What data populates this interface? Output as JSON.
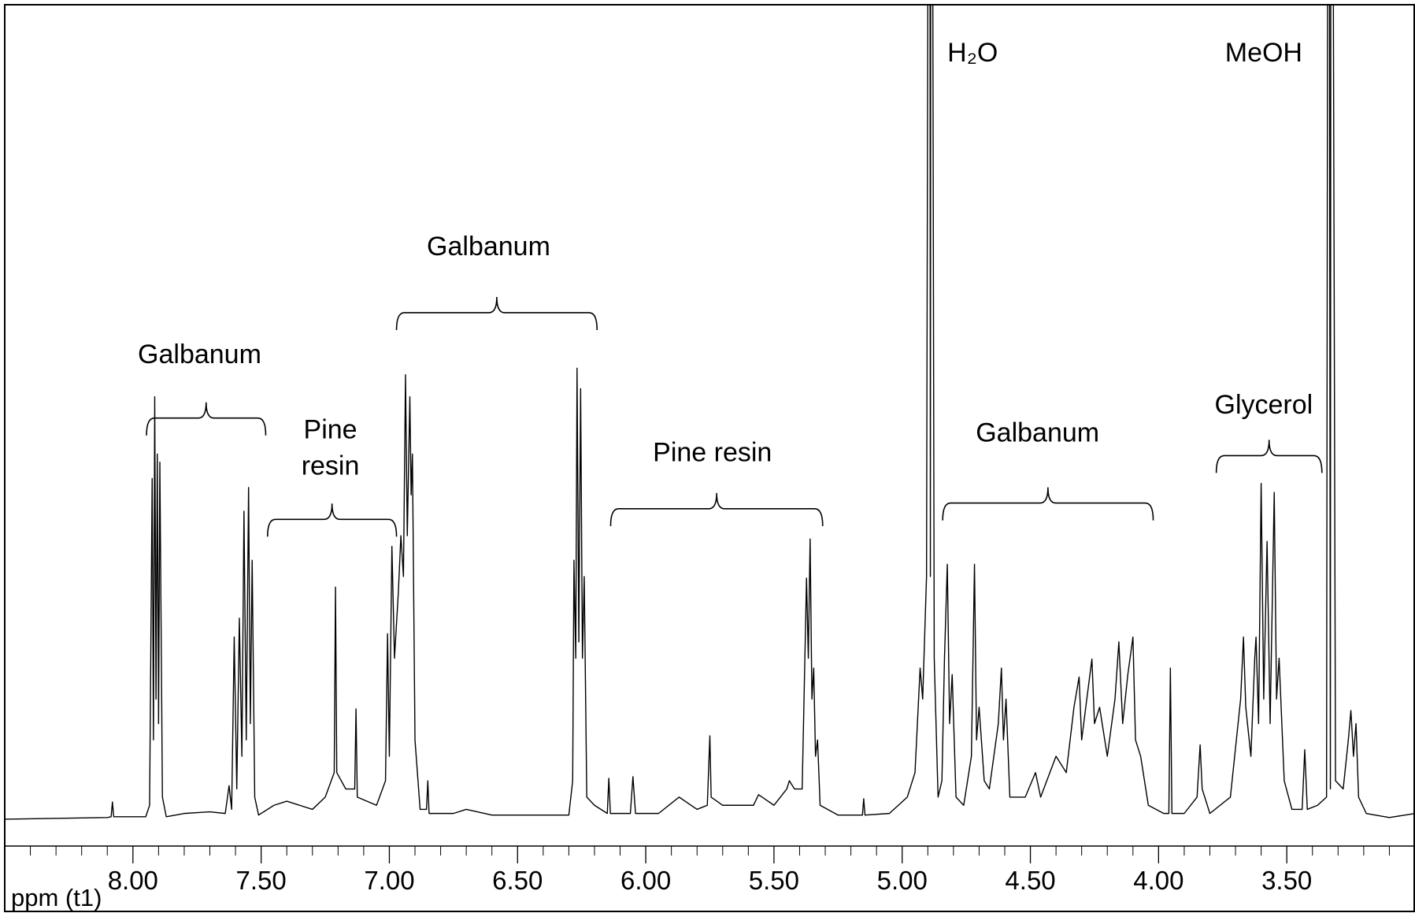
{
  "chart_data": {
    "type": "line",
    "color": "#000000",
    "xlabel": "ppm (t1)",
    "xlim": [
      8.5,
      3.0
    ],
    "ylim": [
      0,
      100
    ],
    "xticks": [
      {
        "value": 8,
        "label": "8.00"
      },
      {
        "value": 7.5,
        "label": "7.50"
      },
      {
        "value": 7,
        "label": "7.00"
      },
      {
        "value": 6.5,
        "label": "6.50"
      },
      {
        "value": 6,
        "label": "6.00"
      },
      {
        "value": 5.5,
        "label": "5.50"
      },
      {
        "value": 5,
        "label": "5.00"
      },
      {
        "value": 4.5,
        "label": "4.50"
      },
      {
        "value": 4,
        "label": "4.00"
      },
      {
        "value": 3.5,
        "label": "3.50"
      }
    ],
    "xminor": [
      8.4,
      8.3,
      8.2,
      8.1,
      7.9,
      7.8,
      7.7,
      7.6,
      7.4,
      7.3,
      7.2,
      7.1,
      6.9,
      6.8,
      6.7,
      6.6,
      6.4,
      6.3,
      6.2,
      6.1,
      5.9,
      5.8,
      5.7,
      5.6,
      5.4,
      5.3,
      5.2,
      5.1,
      4.9,
      4.8,
      4.7,
      4.6,
      4.4,
      4.3,
      4.2,
      4.1,
      3.9,
      3.8,
      3.7,
      3.6,
      3.4,
      3.3,
      3.2,
      3.1
    ],
    "x": [
      8.5,
      8.1,
      8.085,
      8.08,
      8.075,
      7.95,
      7.935,
      7.925,
      7.92,
      7.915,
      7.91,
      7.905,
      7.9,
      7.895,
      7.885,
      7.87,
      7.8,
      7.7,
      7.64,
      7.625,
      7.615,
      7.605,
      7.595,
      7.585,
      7.575,
      7.567,
      7.558,
      7.549,
      7.542,
      7.535,
      7.525,
      7.51,
      7.45,
      7.4,
      7.3,
      7.25,
      7.215,
      7.21,
      7.205,
      7.17,
      7.135,
      7.13,
      7.125,
      7.05,
      7.015,
      7.007,
      7.0,
      6.99,
      6.98,
      6.965,
      6.955,
      6.945,
      6.937,
      6.93,
      6.92,
      6.915,
      6.91,
      6.9,
      6.88,
      6.855,
      6.85,
      6.845,
      6.75,
      6.7,
      6.6,
      6.45,
      6.3,
      6.285,
      6.28,
      6.273,
      6.268,
      6.261,
      6.254,
      6.247,
      6.24,
      6.23,
      6.2,
      6.15,
      6.144,
      6.138,
      6.06,
      6.05,
      6.04,
      5.95,
      5.87,
      5.8,
      5.76,
      5.75,
      5.745,
      5.7,
      5.58,
      5.56,
      5.5,
      5.45,
      5.44,
      5.42,
      5.39,
      5.373,
      5.366,
      5.359,
      5.352,
      5.345,
      5.338,
      5.33,
      5.32,
      5.25,
      5.155,
      5.15,
      5.145,
      5.05,
      4.98,
      4.95,
      4.93,
      4.92,
      4.905,
      4.893,
      4.89,
      4.887,
      4.875,
      4.86,
      4.845,
      4.835,
      4.824,
      4.815,
      4.805,
      4.79,
      4.76,
      4.73,
      4.718,
      4.71,
      4.7,
      4.68,
      4.66,
      4.625,
      4.613,
      4.605,
      4.595,
      4.58,
      4.52,
      4.48,
      4.46,
      4.4,
      4.36,
      4.33,
      4.31,
      4.3,
      4.28,
      4.26,
      4.25,
      4.23,
      4.2,
      4.17,
      4.155,
      4.14,
      4.12,
      4.1,
      4.09,
      4.07,
      4.04,
      3.98,
      3.96,
      3.954,
      3.948,
      3.9,
      3.85,
      3.838,
      3.83,
      3.8,
      3.72,
      3.68,
      3.669,
      3.66,
      3.64,
      3.625,
      3.62,
      3.61,
      3.6,
      3.59,
      3.577,
      3.565,
      3.549,
      3.54,
      3.53,
      3.51,
      3.48,
      3.44,
      3.43,
      3.42,
      3.38,
      3.345,
      3.337,
      3.33,
      3.327,
      3.31,
      3.28,
      3.26,
      3.25,
      3.24,
      3.23,
      3.22,
      3.19,
      3.1,
      3.0
    ],
    "values": [
      0.3,
      0.5,
      0.6,
      2.4,
      0.6,
      0.6,
      2,
      42,
      10,
      52,
      15,
      45,
      12,
      44,
      3,
      0.6,
      1,
      1.2,
      1,
      4.4,
      1.5,
      22.6,
      4,
      24.9,
      8,
      38,
      10,
      40.9,
      12,
      32,
      3,
      0.8,
      2,
      2.5,
      1.5,
      3,
      6,
      28.7,
      6,
      4,
      4,
      13.8,
      3,
      2,
      5,
      23,
      8,
      33.7,
      20,
      28,
      35,
      30,
      54.7,
      35,
      52,
      40,
      45,
      10,
      1.5,
      1.5,
      5,
      1,
      1,
      1.5,
      0.8,
      0.8,
      0.8,
      5,
      32,
      20,
      55.5,
      22,
      53,
      20,
      30,
      3,
      2,
      1,
      5.3,
      1,
      1,
      5.5,
      1,
      1,
      3,
      1.5,
      2,
      10.5,
      3,
      2,
      2,
      3.3,
      2,
      4,
      5,
      4,
      4,
      29.8,
      20,
      34.6,
      15,
      18.8,
      8,
      10,
      2,
      0.8,
      0.8,
      2.8,
      0.8,
      1,
      3,
      6,
      18.8,
      15,
      30,
      200,
      30,
      200,
      20,
      3,
      5,
      20,
      31.5,
      12,
      18,
      3,
      2,
      8,
      31.5,
      10,
      14,
      5,
      4,
      12,
      18.8,
      10,
      15,
      3,
      3,
      6,
      3,
      8,
      6,
      14,
      17.7,
      10,
      15,
      19.9,
      12,
      14,
      8,
      15,
      22,
      12,
      18,
      22.6,
      10,
      8,
      2,
      1,
      1,
      18.8,
      1,
      1,
      3,
      9.4,
      4,
      1,
      3,
      15,
      22.6,
      14,
      8,
      20,
      22.6,
      12,
      41.4,
      15,
      34.3,
      12,
      40.3,
      15,
      20,
      5,
      1.5,
      1.5,
      8.8,
      1.5,
      2,
      3,
      200,
      4,
      200,
      5,
      4,
      10,
      13.6,
      8,
      12,
      3,
      1,
      0.5,
      1
    ],
    "annotations": [
      {
        "lines": [
          "Galbanum"
        ],
        "center": 7.74,
        "text_level": 57,
        "from": 7.947,
        "to": 7.482,
        "level": 49.4
      },
      {
        "lines": [
          "Pine",
          "resin"
        ],
        "center": 7.23,
        "text_level": 47.8,
        "from": 7.475,
        "to": 6.972,
        "level": 37
      },
      {
        "lines": [
          "Galbanum"
        ],
        "center": 6.613,
        "text_level": 70.2,
        "from": 6.972,
        "to": 6.19,
        "level": 62.3
      },
      {
        "lines": [
          "Pine resin"
        ],
        "center": 5.74,
        "text_level": 45,
        "from": 6.137,
        "to": 5.31,
        "level": 38.3
      },
      {
        "lines": [
          "H₂O"
        ],
        "center": 4.725,
        "text_level": 93.9
      },
      {
        "lines": [
          "MeOH"
        ],
        "center": 3.59,
        "text_level": 93.9
      },
      {
        "lines": [
          "Galbanum"
        ],
        "center": 4.472,
        "text_level": 47.4,
        "from": 4.842,
        "to": 4.021,
        "level": 39
      },
      {
        "lines": [
          "Glycerol"
        ],
        "center": 3.59,
        "text_level": 50.8,
        "from": 3.775,
        "to": 3.363,
        "level": 44.8
      }
    ]
  }
}
